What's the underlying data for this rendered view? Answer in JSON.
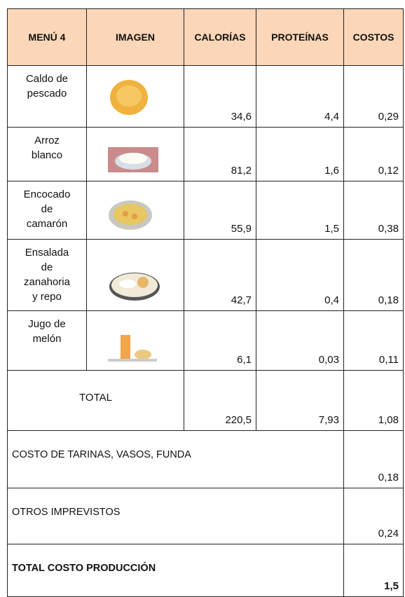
{
  "table": {
    "header": [
      "MENÚ 4",
      "IMAGEN",
      "CALORÍAS",
      "PROTEÍNAS",
      "COSTOS"
    ],
    "rows": [
      [
        "Caldo de pescado",
        "34,6",
        "4,4",
        "0,29"
      ],
      [
        "Arroz blanco",
        "81,2",
        "1,6",
        "0,12"
      ],
      [
        "Encocado de camarón",
        "55,9",
        "1,5",
        "0,38"
      ],
      [
        "Ensalada de zanahoria y repo",
        "42,7",
        "0,4",
        "0,18"
      ],
      [
        "Jugo de melón",
        "6,1",
        "0,03",
        "0,11"
      ]
    ],
    "total": {
      "label": "TOTAL",
      "values": [
        "220,5",
        "7,93",
        "1,08"
      ]
    },
    "extras": [
      {
        "label": "COSTO DE TARINAS, VASOS, FUNDA",
        "value": "0,18"
      },
      {
        "label": "OTROS IMPREVISTOS",
        "value": "0,24"
      },
      {
        "label": "TOTAL COSTO PRODUCCIÓN",
        "value": "1,5"
      }
    ]
  }
}
